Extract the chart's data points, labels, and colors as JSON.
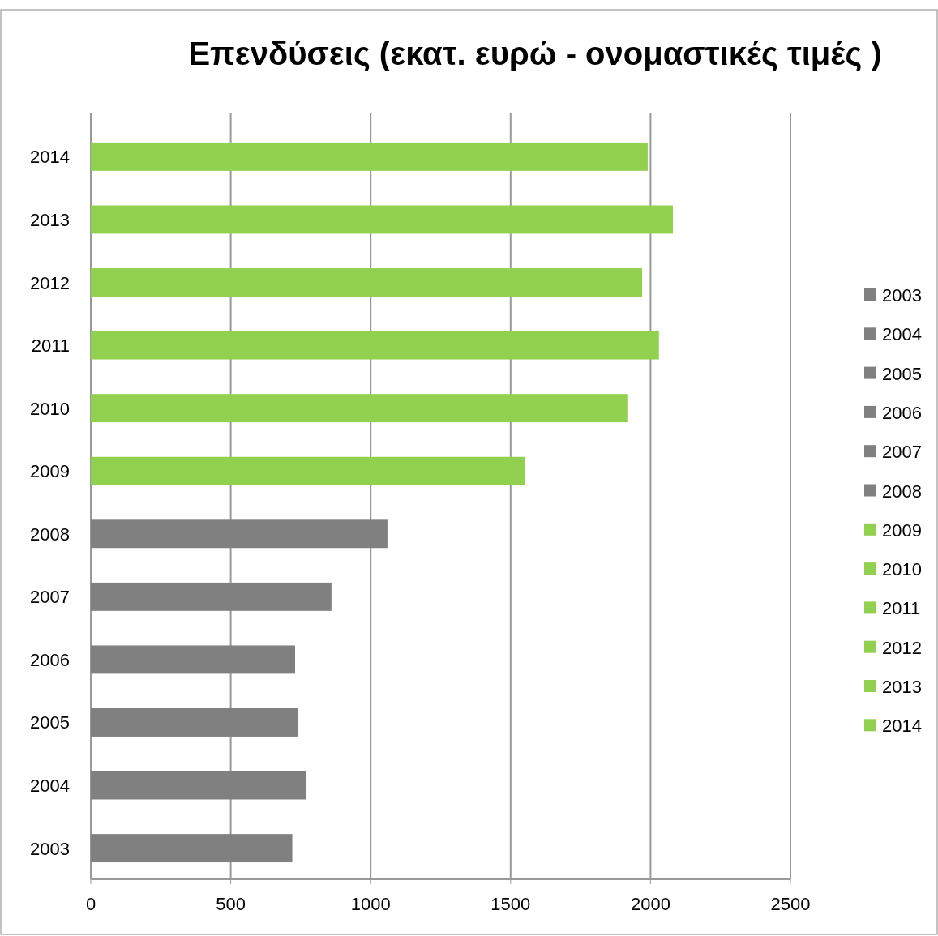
{
  "chart_data": {
    "type": "bar",
    "orientation": "horizontal",
    "title": "Επενδύσεις (εκατ. ευρώ - ονομαστικές τιμές )",
    "categories": [
      "2014",
      "2013",
      "2012",
      "2011",
      "2010",
      "2009",
      "2008",
      "2007",
      "2006",
      "2005",
      "2004",
      "2003"
    ],
    "series": [
      {
        "name": "2003",
        "color": "#808080",
        "values": [
          null,
          null,
          null,
          null,
          null,
          null,
          null,
          null,
          null,
          null,
          null,
          720
        ]
      },
      {
        "name": "2004",
        "color": "#808080",
        "values": [
          null,
          null,
          null,
          null,
          null,
          null,
          null,
          null,
          null,
          null,
          770,
          null
        ]
      },
      {
        "name": "2005",
        "color": "#808080",
        "values": [
          null,
          null,
          null,
          null,
          null,
          null,
          null,
          null,
          null,
          740,
          null,
          null
        ]
      },
      {
        "name": "2006",
        "color": "#808080",
        "values": [
          null,
          null,
          null,
          null,
          null,
          null,
          null,
          null,
          730,
          null,
          null,
          null
        ]
      },
      {
        "name": "2007",
        "color": "#808080",
        "values": [
          null,
          null,
          null,
          null,
          null,
          null,
          null,
          860,
          null,
          null,
          null,
          null
        ]
      },
      {
        "name": "2008",
        "color": "#808080",
        "values": [
          null,
          null,
          null,
          null,
          null,
          null,
          1060,
          null,
          null,
          null,
          null,
          null
        ]
      },
      {
        "name": "2009",
        "color": "#92d050",
        "values": [
          null,
          null,
          null,
          null,
          null,
          1550,
          null,
          null,
          null,
          null,
          null,
          null
        ]
      },
      {
        "name": "2010",
        "color": "#92d050",
        "values": [
          null,
          null,
          null,
          null,
          1920,
          null,
          null,
          null,
          null,
          null,
          null,
          null
        ]
      },
      {
        "name": "2011",
        "color": "#92d050",
        "values": [
          null,
          null,
          null,
          2030,
          null,
          null,
          null,
          null,
          null,
          null,
          null,
          null
        ]
      },
      {
        "name": "2012",
        "color": "#92d050",
        "values": [
          null,
          null,
          1970,
          null,
          null,
          null,
          null,
          null,
          null,
          null,
          null,
          null
        ]
      },
      {
        "name": "2013",
        "color": "#92d050",
        "values": [
          null,
          2080,
          null,
          null,
          null,
          null,
          null,
          null,
          null,
          null,
          null,
          null
        ]
      },
      {
        "name": "2014",
        "color": "#92d050",
        "values": [
          1990,
          null,
          null,
          null,
          null,
          null,
          null,
          null,
          null,
          null,
          null,
          null
        ]
      }
    ],
    "xlim": [
      0,
      2500
    ],
    "xticks": [
      0,
      500,
      1000,
      1500,
      2000,
      2500
    ],
    "grid": "x",
    "legend": "right"
  }
}
